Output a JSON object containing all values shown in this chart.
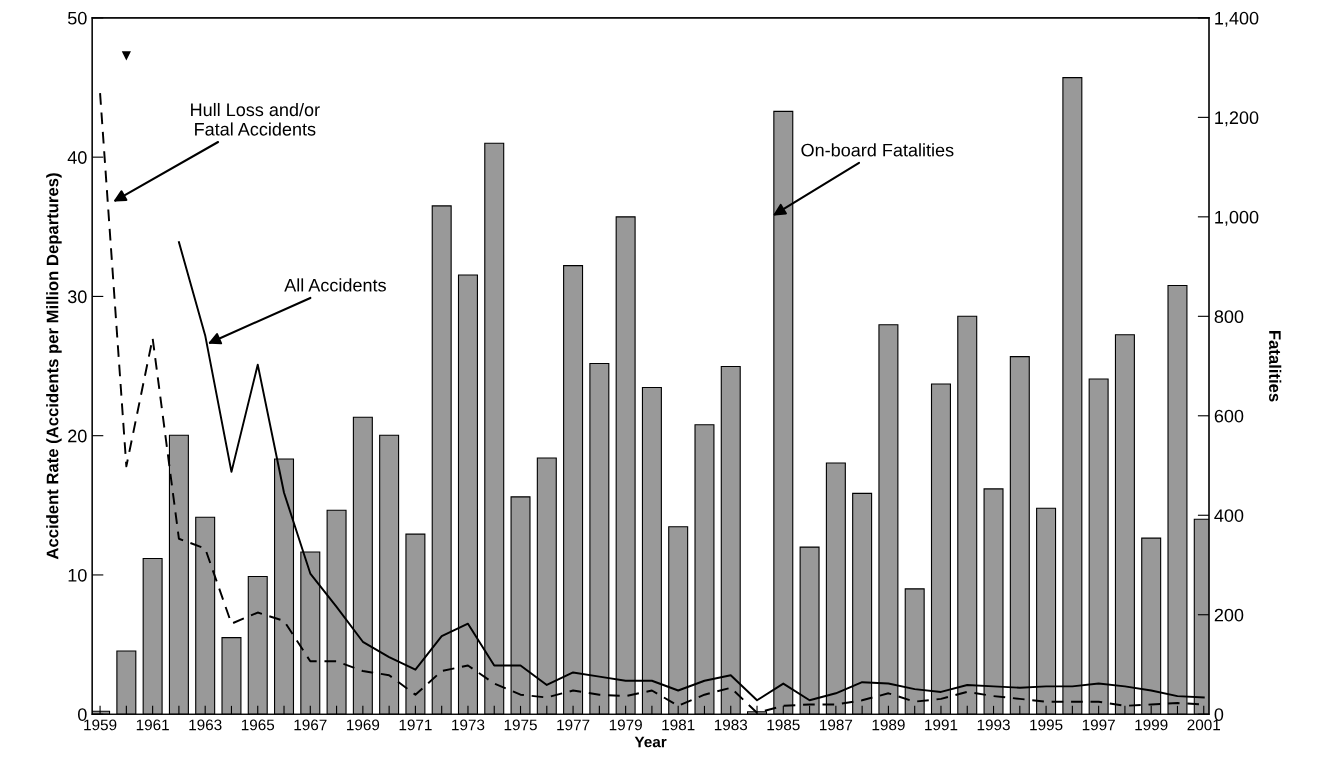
{
  "chart_data": {
    "type": "line",
    "xlabel": "Year",
    "ylabel": "Accident Rate (Accidents per Million Departures)",
    "y2label": "Fatalities",
    "x": [
      1959,
      1960,
      1961,
      1962,
      1963,
      1964,
      1965,
      1966,
      1967,
      1968,
      1969,
      1970,
      1971,
      1972,
      1973,
      1974,
      1975,
      1976,
      1977,
      1978,
      1979,
      1980,
      1981,
      1982,
      1983,
      1984,
      1985,
      1986,
      1987,
      1988,
      1989,
      1990,
      1991,
      1992,
      1993,
      1994,
      1995,
      1996,
      1997,
      1998,
      1999,
      2000,
      2001
    ],
    "series": [
      {
        "type": "bar",
        "axis": "y2",
        "color": "#999999",
        "values": [
          6,
          127,
          313,
          561,
          396,
          154,
          277,
          513,
          326,
          410,
          597,
          561,
          362,
          1022,
          883,
          1148,
          437,
          515,
          902,
          705,
          1000,
          657,
          377,
          582,
          699,
          5,
          1212,
          336,
          505,
          444,
          783,
          252,
          664,
          800,
          453,
          719,
          414,
          1280,
          674,
          763,
          354,
          862,
          392
        ]
      },
      {
        "color": "#000000",
        "line_style": "solid",
        "values": [
          null,
          47.3,
          null,
          33.9,
          27.2,
          17.4,
          25.1,
          15.9,
          10.1,
          7.7,
          5.2,
          4.1,
          3.2,
          5.6,
          6.5,
          3.5,
          3.5,
          2.1,
          3.0,
          2.7,
          2.4,
          2.4,
          1.7,
          2.4,
          2.8,
          1.0,
          2.2,
          1.0,
          1.5,
          2.3,
          2.2,
          1.8,
          1.6,
          2.1,
          2.0,
          1.9,
          2.0,
          2.0,
          2.2,
          2.0,
          1.7,
          1.3,
          1.2
        ]
      },
      {
        "color": "#000000",
        "line_style": "dashed",
        "values": [
          44.6,
          17.8,
          27.0,
          12.6,
          11.9,
          6.5,
          7.3,
          6.7,
          3.8,
          3.8,
          3.1,
          2.8,
          1.4,
          3.1,
          3.5,
          2.2,
          1.4,
          1.2,
          1.7,
          1.4,
          1.3,
          1.7,
          0.6,
          1.4,
          1.9,
          0.1,
          0.6,
          0.7,
          0.7,
          1.0,
          1.5,
          0.9,
          1.1,
          1.6,
          1.3,
          1.1,
          0.9,
          0.9,
          0.9,
          0.6,
          0.7,
          0.8,
          0.7
        ]
      }
    ],
    "annotations": [
      {
        "text": "Hull Loss and/or\nFatal Accidents",
        "x": 1959.5,
        "y": 36.8
      },
      {
        "text": "All Accidents",
        "x": 1963.1,
        "y": 26.6
      },
      {
        "text": "On-board Fatalities",
        "x": 1984.6,
        "y": 35.8
      }
    ],
    "xlim": [
      1958.7,
      2001.2
    ],
    "xticks": [
      1959,
      {
        "value": 1960,
        "label": null
      },
      1961,
      {
        "value": 1962,
        "label": null
      },
      1963,
      {
        "value": 1964,
        "label": null
      },
      1965,
      {
        "value": 1966,
        "label": null
      },
      1967,
      {
        "value": 1968,
        "label": null
      },
      1969,
      {
        "value": 1970,
        "label": null
      },
      1971,
      {
        "value": 1972,
        "label": null
      },
      1973,
      {
        "value": 1974,
        "label": null
      },
      1975,
      {
        "value": 1976,
        "label": null
      },
      1977,
      {
        "value": 1978,
        "label": null
      },
      1979,
      {
        "value": 1980,
        "label": null
      },
      1981,
      {
        "value": 1982,
        "label": null
      },
      1983,
      {
        "value": 1984,
        "label": null
      },
      1985,
      {
        "value": 1986,
        "label": null
      },
      1987,
      {
        "value": 1988,
        "label": null
      },
      1989,
      {
        "value": 1990,
        "label": null
      },
      1991,
      {
        "value": 1992,
        "label": null
      },
      1993,
      {
        "value": 1994,
        "label": null
      },
      1995,
      {
        "value": 1996,
        "label": null
      },
      1997,
      {
        "value": 1998,
        "label": null
      },
      1999,
      {
        "value": 2000,
        "label": null
      },
      2001
    ],
    "ylim": [
      0,
      50
    ],
    "yticks": [
      0,
      10,
      20,
      30,
      40,
      50
    ],
    "y2lim": [
      0,
      1400
    ],
    "y2ticks": [
      0,
      200,
      400,
      600,
      800,
      {
        "value": 1000,
        "label": "1,000"
      },
      {
        "value": 1200,
        "label": "1,200"
      },
      {
        "value": 1400,
        "label": "1,400"
      }
    ],
    "grid": false,
    "legend": false
  }
}
